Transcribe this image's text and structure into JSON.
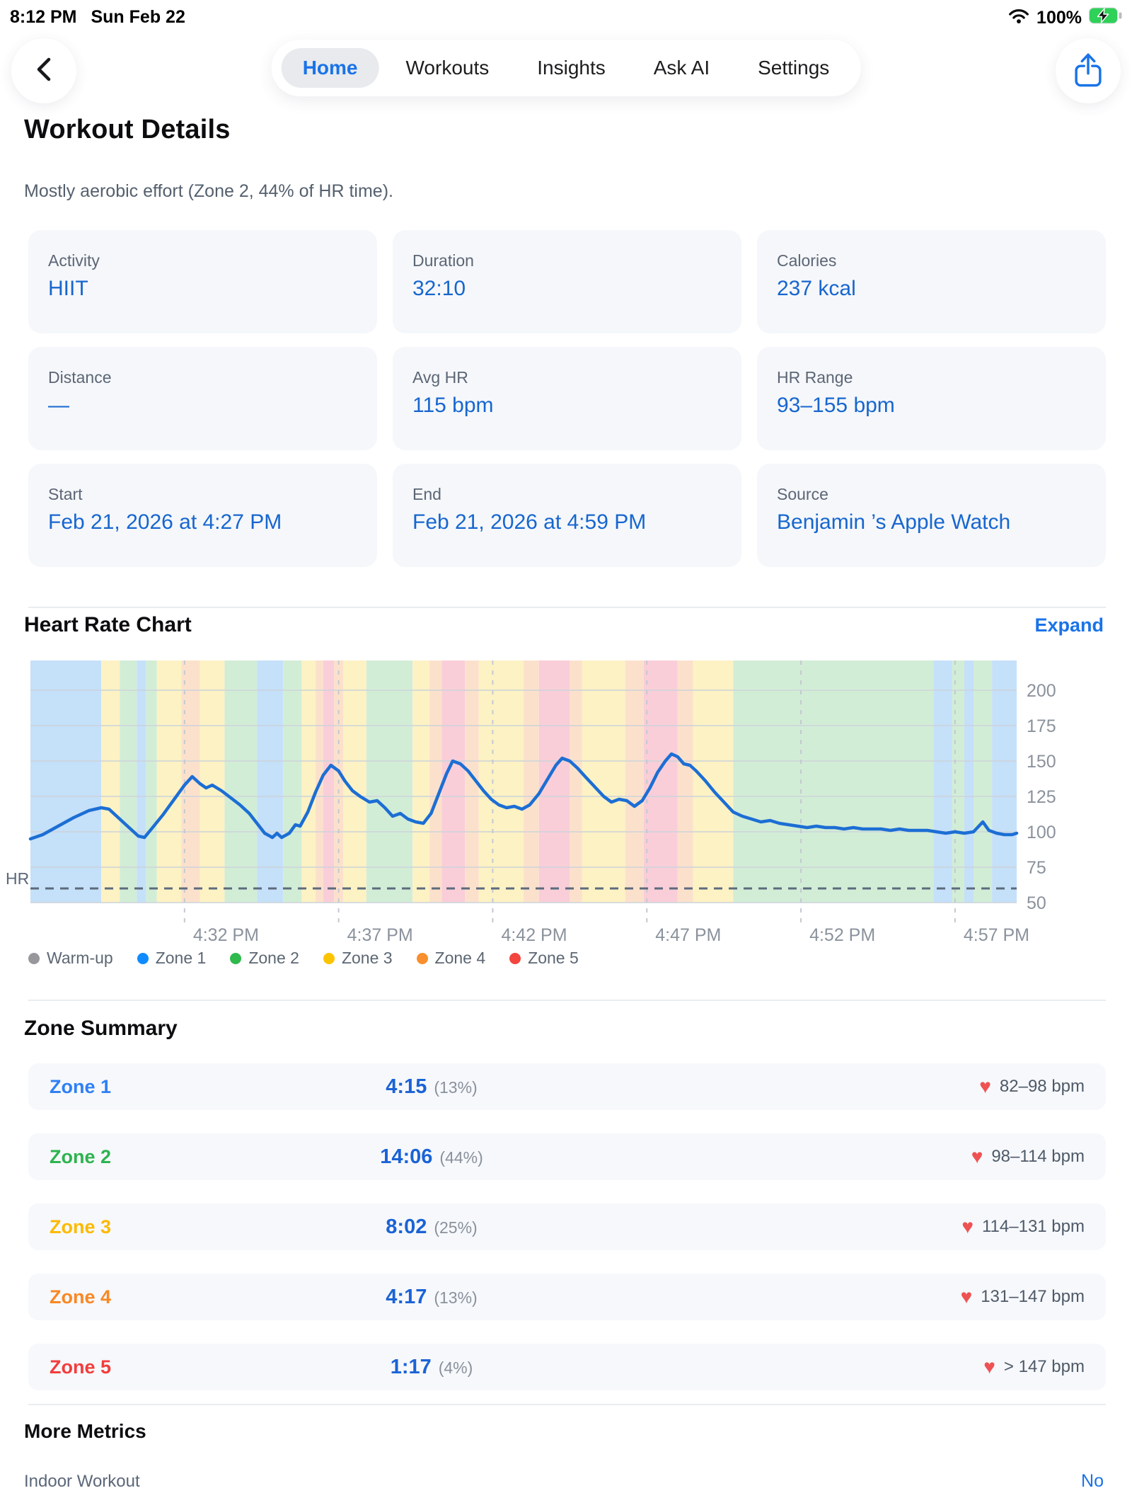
{
  "status_bar": {
    "time": "8:12 PM",
    "date": "Sun Feb 22",
    "battery_pct": "100%"
  },
  "nav": {
    "tabs": [
      {
        "label": "Home",
        "active": true
      },
      {
        "label": "Workouts",
        "active": false
      },
      {
        "label": "Insights",
        "active": false
      },
      {
        "label": "Ask AI",
        "active": false
      },
      {
        "label": "Settings",
        "active": false
      }
    ]
  },
  "header": {
    "title": "Workout Details",
    "subtitle": "Mostly aerobic effort (Zone 2, 44% of HR time)."
  },
  "cards": [
    {
      "label": "Activity",
      "value": "HIIT"
    },
    {
      "label": "Duration",
      "value": "32:10"
    },
    {
      "label": "Calories",
      "value": "237 kcal"
    },
    {
      "label": "Distance",
      "value": "—"
    },
    {
      "label": "Avg HR",
      "value": "115 bpm"
    },
    {
      "label": "HR Range",
      "value": "93–155 bpm"
    },
    {
      "label": "Start",
      "value": "Feb 21, 2026 at 4:27 PM"
    },
    {
      "label": "End",
      "value": "Feb 21, 2026 at 4:59 PM"
    },
    {
      "label": "Source",
      "value": "Benjamin ’s Apple Watch"
    }
  ],
  "chart_section": {
    "title": "Heart Rate Chart",
    "expand_label": "Expand",
    "axis_label": "HR"
  },
  "chart_data": {
    "type": "line",
    "title": "Heart Rate Chart",
    "x_unit": "minutes after 4:27 PM",
    "x_range": [
      0,
      32
    ],
    "y_range": [
      50,
      221
    ],
    "y_ticks": [
      200,
      175,
      150,
      125,
      100,
      75,
      50
    ],
    "x_ticks": [
      {
        "min": 5,
        "label": "4:32 PM"
      },
      {
        "min": 10,
        "label": "4:37 PM"
      },
      {
        "min": 15,
        "label": "4:42 PM"
      },
      {
        "min": 20,
        "label": "4:47 PM"
      },
      {
        "min": 25,
        "label": "4:52 PM"
      },
      {
        "min": 30,
        "label": "4:57 PM"
      }
    ],
    "reference_line_bpm": 60,
    "line_color": "#1c6ed4",
    "series": [
      {
        "name": "HR",
        "points": [
          [
            0,
            95
          ],
          [
            0.4,
            98
          ],
          [
            0.9,
            104
          ],
          [
            1.4,
            110
          ],
          [
            1.9,
            115
          ],
          [
            2.3,
            117
          ],
          [
            2.55,
            116
          ],
          [
            2.8,
            111
          ],
          [
            3.1,
            105
          ],
          [
            3.5,
            97
          ],
          [
            3.7,
            96
          ],
          [
            4.0,
            104
          ],
          [
            4.3,
            112
          ],
          [
            4.7,
            124
          ],
          [
            5.0,
            133
          ],
          [
            5.25,
            139
          ],
          [
            5.5,
            134
          ],
          [
            5.7,
            131
          ],
          [
            5.9,
            133
          ],
          [
            6.2,
            129
          ],
          [
            6.5,
            124
          ],
          [
            6.8,
            119
          ],
          [
            7.1,
            113
          ],
          [
            7.35,
            106
          ],
          [
            7.6,
            99
          ],
          [
            7.85,
            96
          ],
          [
            8.0,
            99
          ],
          [
            8.15,
            96
          ],
          [
            8.4,
            99
          ],
          [
            8.6,
            105
          ],
          [
            8.75,
            104
          ],
          [
            9.0,
            114
          ],
          [
            9.25,
            128
          ],
          [
            9.5,
            140
          ],
          [
            9.75,
            147
          ],
          [
            10.0,
            143
          ],
          [
            10.2,
            136
          ],
          [
            10.45,
            129
          ],
          [
            10.7,
            125
          ],
          [
            11.0,
            121
          ],
          [
            11.25,
            122
          ],
          [
            11.5,
            117
          ],
          [
            11.75,
            111
          ],
          [
            12.0,
            113
          ],
          [
            12.25,
            109
          ],
          [
            12.5,
            107
          ],
          [
            12.75,
            106
          ],
          [
            13.0,
            113
          ],
          [
            13.25,
            127
          ],
          [
            13.5,
            141
          ],
          [
            13.7,
            150
          ],
          [
            13.95,
            148
          ],
          [
            14.2,
            143
          ],
          [
            14.45,
            136
          ],
          [
            14.7,
            129
          ],
          [
            14.95,
            123
          ],
          [
            15.2,
            119
          ],
          [
            15.45,
            117
          ],
          [
            15.7,
            118
          ],
          [
            15.95,
            116
          ],
          [
            16.2,
            119
          ],
          [
            16.5,
            127
          ],
          [
            16.8,
            138
          ],
          [
            17.05,
            147
          ],
          [
            17.25,
            152
          ],
          [
            17.5,
            150
          ],
          [
            17.75,
            145
          ],
          [
            18.0,
            139
          ],
          [
            18.3,
            132
          ],
          [
            18.6,
            125
          ],
          [
            18.85,
            121
          ],
          [
            19.1,
            123
          ],
          [
            19.35,
            122
          ],
          [
            19.6,
            118
          ],
          [
            19.85,
            122
          ],
          [
            20.1,
            131
          ],
          [
            20.35,
            142
          ],
          [
            20.6,
            150
          ],
          [
            20.8,
            155
          ],
          [
            21.0,
            153
          ],
          [
            21.2,
            148
          ],
          [
            21.4,
            147
          ],
          [
            21.6,
            143
          ],
          [
            21.9,
            136
          ],
          [
            22.2,
            128
          ],
          [
            22.5,
            121
          ],
          [
            22.8,
            114
          ],
          [
            23.1,
            111
          ],
          [
            23.4,
            109
          ],
          [
            23.7,
            107
          ],
          [
            24.0,
            108
          ],
          [
            24.3,
            106
          ],
          [
            24.6,
            105
          ],
          [
            24.9,
            104
          ],
          [
            25.2,
            103
          ],
          [
            25.5,
            104
          ],
          [
            25.8,
            103
          ],
          [
            26.1,
            103
          ],
          [
            26.4,
            102
          ],
          [
            26.7,
            103
          ],
          [
            27.0,
            102
          ],
          [
            27.3,
            102
          ],
          [
            27.6,
            102
          ],
          [
            27.9,
            101
          ],
          [
            28.2,
            102
          ],
          [
            28.5,
            101
          ],
          [
            28.8,
            101
          ],
          [
            29.1,
            101
          ],
          [
            29.4,
            100
          ],
          [
            29.7,
            99
          ],
          [
            30.0,
            100
          ],
          [
            30.3,
            99
          ],
          [
            30.6,
            100
          ],
          [
            30.9,
            107
          ],
          [
            31.1,
            101
          ],
          [
            31.35,
            99
          ],
          [
            31.6,
            98
          ],
          [
            31.85,
            98
          ],
          [
            32,
            99
          ]
        ]
      }
    ],
    "zone_bands": [
      [
        0,
        2.3,
        "z1"
      ],
      [
        2.3,
        2.9,
        "z3"
      ],
      [
        2.9,
        3.45,
        "z2"
      ],
      [
        3.45,
        3.75,
        "z1"
      ],
      [
        3.75,
        4.1,
        "z2"
      ],
      [
        4.1,
        4.9,
        "z3"
      ],
      [
        4.9,
        5.5,
        "z4"
      ],
      [
        5.5,
        6.3,
        "z3"
      ],
      [
        6.3,
        7.35,
        "z2"
      ],
      [
        7.35,
        8.2,
        "z1"
      ],
      [
        8.2,
        8.8,
        "z2"
      ],
      [
        8.8,
        9.25,
        "z3"
      ],
      [
        9.25,
        9.5,
        "z4"
      ],
      [
        9.5,
        9.85,
        "z5"
      ],
      [
        9.85,
        10.15,
        "z4"
      ],
      [
        10.15,
        10.9,
        "z3"
      ],
      [
        10.9,
        12.4,
        "z2"
      ],
      [
        12.4,
        12.95,
        "z3"
      ],
      [
        12.95,
        13.35,
        "z4"
      ],
      [
        13.35,
        14.1,
        "z5"
      ],
      [
        14.1,
        14.55,
        "z4"
      ],
      [
        14.55,
        16.0,
        "z3"
      ],
      [
        16.0,
        16.5,
        "z4"
      ],
      [
        16.5,
        17.5,
        "z5"
      ],
      [
        17.5,
        17.9,
        "z4"
      ],
      [
        17.9,
        19.3,
        "z3"
      ],
      [
        19.3,
        19.9,
        "z4"
      ],
      [
        19.9,
        21.0,
        "z5"
      ],
      [
        21.0,
        21.5,
        "z4"
      ],
      [
        21.5,
        22.8,
        "z3"
      ],
      [
        22.8,
        29.3,
        "z2"
      ],
      [
        29.3,
        29.9,
        "z1"
      ],
      [
        29.9,
        30.3,
        "z2"
      ],
      [
        30.3,
        30.6,
        "z1"
      ],
      [
        30.6,
        31.2,
        "z2"
      ],
      [
        31.2,
        32,
        "z1"
      ]
    ],
    "band_colors": {
      "z1": "#c5e0f9",
      "z2": "#d2edd6",
      "z3": "#fdf2c4",
      "z4": "#fbe1cc",
      "z5": "#f9ced8"
    },
    "legend": [
      {
        "label": "Warm-up",
        "color": "#97979c"
      },
      {
        "label": "Zone 1",
        "color": "#0f8bff"
      },
      {
        "label": "Zone 2",
        "color": "#30b94d"
      },
      {
        "label": "Zone 3",
        "color": "#fcc400"
      },
      {
        "label": "Zone 4",
        "color": "#fa8f2d"
      },
      {
        "label": "Zone 5",
        "color": "#f2453d"
      }
    ],
    "grid": true,
    "legend_position": "bottom"
  },
  "zone_summary": {
    "title": "Zone Summary",
    "rows": [
      {
        "name": "Zone 1",
        "color": "#2f80f5",
        "time": "4:15",
        "pct": "(13%)",
        "range": "82–98 bpm"
      },
      {
        "name": "Zone 2",
        "color": "#2eb350",
        "time": "14:06",
        "pct": "(44%)",
        "range": "98–114 bpm"
      },
      {
        "name": "Zone 3",
        "color": "#fcba00",
        "time": "8:02",
        "pct": "(25%)",
        "range": "114–131 bpm"
      },
      {
        "name": "Zone 4",
        "color": "#f98824",
        "time": "4:17",
        "pct": "(13%)",
        "range": "131–147 bpm"
      },
      {
        "name": "Zone 5",
        "color": "#f23d3d",
        "time": "1:17",
        "pct": "(4%)",
        "range": "> 147 bpm"
      }
    ]
  },
  "more_metrics": {
    "title": "More Metrics",
    "rows": [
      {
        "label": "Indoor Workout",
        "value": "No"
      }
    ]
  },
  "icons": {
    "heart": "♥"
  }
}
